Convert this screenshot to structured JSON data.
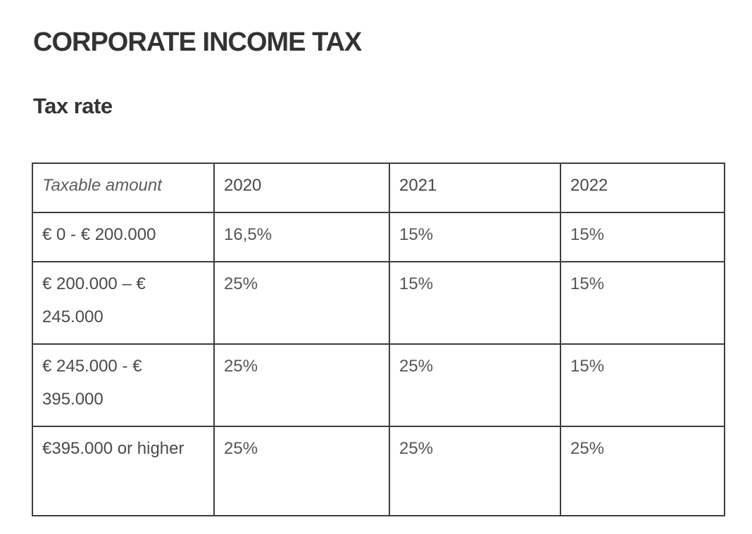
{
  "page": {
    "title": "CORPORATE INCOME TAX",
    "subtitle": "Tax rate"
  },
  "table": {
    "headers": [
      "Taxable amount",
      "2020",
      "2021",
      "2022"
    ],
    "rows": [
      [
        "€ 0 - € 200.000",
        "16,5%",
        "15%",
        "15%"
      ],
      [
        "€ 200.000 – € 245.000",
        "25%",
        "15%",
        "15%"
      ],
      [
        "€ 245.000 - € 395.000",
        "25%",
        "25%",
        "15%"
      ],
      [
        "€395.000 or higher",
        "25%",
        "25%",
        "25%"
      ]
    ]
  },
  "colors": {
    "background": "#ffffff",
    "heading_text": "#333333",
    "table_border": "#3d3d3d",
    "amount_text": "#4a4a4a",
    "rate_text": "#565656"
  }
}
